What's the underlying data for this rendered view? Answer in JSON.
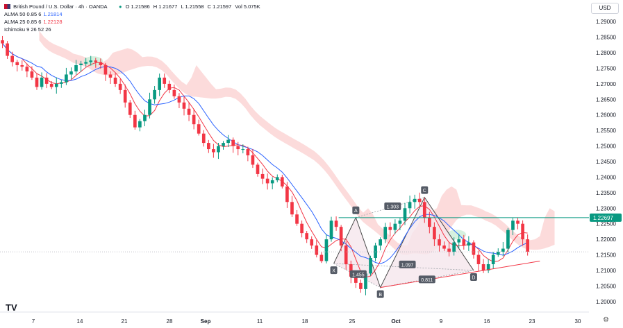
{
  "header": {
    "dot_color": "#089981",
    "open": "O 1.21586",
    "high": "H 1.21677",
    "low": "L 1.21558",
    "close": "C 1.21597",
    "volume": "Vol 5.075K",
    "currency_label": "USD"
  },
  "legend": {
    "title": "British Pound / U.S. Dollar · 4h · OANDA",
    "items": [
      {
        "label": "ALMA 50 0.85 6",
        "value": "1.21814",
        "color": "#2962ff"
      },
      {
        "label": "ALMA 25 0.85 6",
        "value": "1.22128",
        "color": "#f23645"
      },
      {
        "label": "Ichimoku 9 26 52 26",
        "value": "",
        "color": "#131722"
      }
    ]
  },
  "branding": {
    "logo_text": "TV",
    "settings_icon": "gear-icon"
  },
  "chart_data": {
    "type": "candlestick",
    "title": "British Pound / U.S. Dollar · 4h · OANDA",
    "x_axis_labels": [
      "7",
      "14",
      "21",
      "28",
      "Sep",
      "11",
      "18",
      "25",
      "Oct",
      "9",
      "16",
      "23",
      "30"
    ],
    "y_axis_labels": [
      "1.29000",
      "1.28500",
      "1.28000",
      "1.27500",
      "1.27000",
      "1.26500",
      "1.26000",
      "1.25500",
      "1.25000",
      "1.24500",
      "1.24000",
      "1.23500",
      "1.23000",
      "1.22500",
      "1.22000",
      "1.21500",
      "1.21000",
      "1.20500",
      "1.20000"
    ],
    "ylim": [
      1.1975,
      1.2925
    ],
    "xlim": [
      0,
      120
    ],
    "current_price": 1.21597,
    "horizontal_level": {
      "value": 1.22697,
      "label": "1.22697"
    },
    "colors": {
      "up": "#089981",
      "down": "#f23645",
      "cloud_bear": "#fbd5d5",
      "cloud_bull": "#d2efdb",
      "pattern_line": "#4a4a4a",
      "pattern_fill": "#f5e6ec",
      "support_line": "#f23645",
      "level_line": "#089981"
    },
    "close_series": [
      1.283,
      1.279,
      1.277,
      1.276,
      1.2755,
      1.274,
      1.272,
      1.269,
      1.272,
      1.27,
      1.269,
      1.27,
      1.2705,
      1.273,
      1.274,
      1.276,
      1.2765,
      1.277,
      1.2775,
      1.277,
      1.276,
      1.273,
      1.272,
      1.27,
      1.268,
      1.264,
      1.26,
      1.256,
      1.258,
      1.26,
      1.265,
      1.268,
      1.272,
      1.27,
      1.268,
      1.266,
      1.264,
      1.262,
      1.26,
      1.257,
      1.254,
      1.251,
      1.249,
      1.248,
      1.25,
      1.251,
      1.252,
      1.25,
      1.249,
      1.249,
      1.247,
      1.244,
      1.241,
      1.2395,
      1.238,
      1.239,
      1.24,
      1.237,
      1.232,
      1.228,
      1.225,
      1.222,
      1.22,
      1.218,
      1.215,
      1.213,
      1.22,
      1.226,
      1.224,
      1.218,
      1.212,
      1.208,
      1.206,
      1.204,
      1.209,
      1.214,
      1.218,
      1.22,
      1.224,
      1.223,
      1.225,
      1.226,
      1.23,
      1.232,
      1.233,
      1.232,
      1.227,
      1.224,
      1.22,
      1.218,
      1.217,
      1.216,
      1.219,
      1.22,
      1.218,
      1.219,
      1.215,
      1.212,
      1.21,
      1.212,
      1.215,
      1.216,
      1.217,
      1.223,
      1.226,
      1.225,
      1.22,
      1.216
    ],
    "pattern": {
      "points": [
        {
          "label": "X",
          "x": 68,
          "y": 1.2122
        },
        {
          "label": "A",
          "x": 72.5,
          "y": 1.227
        },
        {
          "label": "B",
          "x": 77.5,
          "y": 1.2045
        },
        {
          "label": "C",
          "x": 86.5,
          "y": 1.2335
        },
        {
          "label": "D",
          "x": 96.5,
          "y": 1.21
        }
      ],
      "ratios": [
        {
          "label": "1.455",
          "x": 73,
          "y": 1.2087
        },
        {
          "label": "1.303",
          "x": 80,
          "y": 1.2305
        },
        {
          "label": "1.097",
          "x": 83,
          "y": 1.2118
        },
        {
          "label": "0.811",
          "x": 87,
          "y": 1.207
        }
      ]
    },
    "support_line": {
      "from": {
        "x": 77.5,
        "y": 1.2045
      },
      "to": {
        "x": 110,
        "y": 1.213
      }
    },
    "grid": false
  }
}
